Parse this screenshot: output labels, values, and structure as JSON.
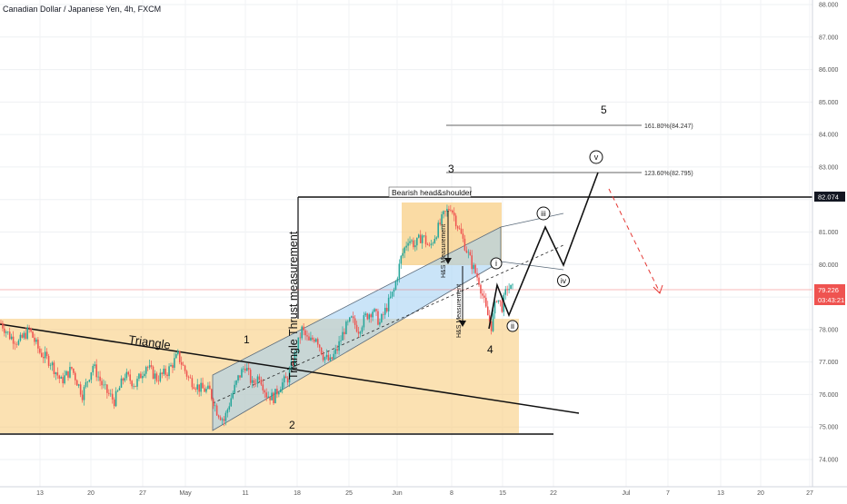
{
  "header": {
    "title": "Canadian Dollar / Japanese Yen, 4h, FXCM"
  },
  "chart_data": {
    "type": "candlestick",
    "symbol": "Canadian Dollar / Japanese Yen",
    "interval": "4h",
    "source": "FXCM",
    "y_range": [
      73.5,
      88.0
    ],
    "y_ticks": [
      {
        "value": 74,
        "label": "74.000"
      },
      {
        "value": 75,
        "label": "75.000"
      },
      {
        "value": 76,
        "label": "76.000"
      },
      {
        "value": 77,
        "label": "77.000"
      },
      {
        "value": 78,
        "label": "78.000"
      },
      {
        "value": 79,
        "label": "79.000"
      },
      {
        "value": 80,
        "label": "80.000"
      },
      {
        "value": 81,
        "label": "81.000"
      },
      {
        "value": 82,
        "label": "82.000"
      },
      {
        "value": 83,
        "label": "83.000"
      },
      {
        "value": 84,
        "label": "84.000"
      },
      {
        "value": 85,
        "label": "85.000"
      },
      {
        "value": 86,
        "label": "86.000"
      },
      {
        "value": 87,
        "label": "87.000"
      },
      {
        "value": 88,
        "label": "88.000"
      }
    ],
    "x_ticks": [
      "13",
      "20",
      "27",
      "May",
      "11",
      "18",
      "25",
      "Jun",
      "8",
      "15",
      "22",
      "Jul",
      "7",
      "13",
      "20",
      "27"
    ],
    "last_price": {
      "value": 79.226,
      "label": "79.226",
      "countdown": "03:43:21"
    },
    "resistance": {
      "value": 82.074,
      "label": "82.074"
    },
    "colors": {
      "up": "#26a69a",
      "down": "#ef5350",
      "zone": "#f7c873",
      "channel": "#9fcdf2",
      "price_line": "#ef5350",
      "arrow": "#e53935"
    },
    "close_path": [
      {
        "t": 0,
        "p": 78.2
      },
      {
        "t": 5,
        "p": 77.8
      },
      {
        "t": 10,
        "p": 77.6
      },
      {
        "t": 16,
        "p": 78.0
      },
      {
        "t": 22,
        "p": 77.3
      },
      {
        "t": 28,
        "p": 77.0
      },
      {
        "t": 34,
        "p": 76.4
      },
      {
        "t": 40,
        "p": 76.8
      },
      {
        "t": 46,
        "p": 76.0
      },
      {
        "t": 52,
        "p": 76.9
      },
      {
        "t": 58,
        "p": 76.2
      },
      {
        "t": 64,
        "p": 75.8
      },
      {
        "t": 70,
        "p": 76.6
      },
      {
        "t": 76,
        "p": 76.3
      },
      {
        "t": 82,
        "p": 76.9
      },
      {
        "t": 88,
        "p": 76.5
      },
      {
        "t": 94,
        "p": 76.7
      },
      {
        "t": 100,
        "p": 77.2
      },
      {
        "t": 106,
        "p": 76.5
      },
      {
        "t": 112,
        "p": 76.2
      },
      {
        "t": 118,
        "p": 76.1
      },
      {
        "t": 122,
        "p": 75.5
      },
      {
        "t": 126,
        "p": 75.2
      },
      {
        "t": 130,
        "p": 75.9
      },
      {
        "t": 134,
        "p": 76.5
      },
      {
        "t": 138,
        "p": 76.9
      },
      {
        "t": 142,
        "p": 76.3
      },
      {
        "t": 146,
        "p": 76.6
      },
      {
        "t": 150,
        "p": 76.0
      },
      {
        "t": 154,
        "p": 75.9
      },
      {
        "t": 158,
        "p": 76.3
      },
      {
        "t": 162,
        "p": 76.5
      },
      {
        "t": 166,
        "p": 77.2
      },
      {
        "t": 170,
        "p": 78.0
      },
      {
        "t": 174,
        "p": 77.6
      },
      {
        "t": 178,
        "p": 77.8
      },
      {
        "t": 182,
        "p": 77.2
      },
      {
        "t": 186,
        "p": 77.0
      },
      {
        "t": 190,
        "p": 77.4
      },
      {
        "t": 194,
        "p": 78.0
      },
      {
        "t": 198,
        "p": 78.3
      },
      {
        "t": 202,
        "p": 78.0
      },
      {
        "t": 206,
        "p": 78.4
      },
      {
        "t": 210,
        "p": 78.6
      },
      {
        "t": 214,
        "p": 78.2
      },
      {
        "t": 218,
        "p": 78.7
      },
      {
        "t": 222,
        "p": 79.2
      },
      {
        "t": 226,
        "p": 80.2
      },
      {
        "t": 230,
        "p": 80.8
      },
      {
        "t": 234,
        "p": 80.6
      },
      {
        "t": 238,
        "p": 80.9
      },
      {
        "t": 242,
        "p": 80.5
      },
      {
        "t": 246,
        "p": 81.0
      },
      {
        "t": 250,
        "p": 81.5
      },
      {
        "t": 254,
        "p": 81.8
      },
      {
        "t": 258,
        "p": 81.2
      },
      {
        "t": 262,
        "p": 80.6
      },
      {
        "t": 266,
        "p": 80.0
      },
      {
        "t": 270,
        "p": 79.5
      },
      {
        "t": 274,
        "p": 78.6
      },
      {
        "t": 277,
        "p": 78.1
      },
      {
        "t": 280,
        "p": 79.0
      },
      {
        "t": 283,
        "p": 78.7
      },
      {
        "t": 286,
        "p": 79.3
      },
      {
        "t": 290,
        "p": 79.2
      }
    ],
    "annotations": {
      "triangle_label": "Triangle",
      "thrust_label": "Triangle Thrust measurement",
      "hs_label": "Bearish head&shoulder",
      "hs_measure_1": "H&S Measurement",
      "hs_measure_2": "H&S Measurement",
      "fib_1618": "161.80%(84.247)",
      "fib_1236": "123.60%(82.795)",
      "wave_1": "1",
      "wave_2": "2",
      "wave_3": "3",
      "wave_4": "4",
      "wave_5": "5",
      "wave_i": "i",
      "wave_ii": "ii",
      "wave_iii": "iii",
      "wave_iv": "iv",
      "wave_v": "v"
    }
  }
}
